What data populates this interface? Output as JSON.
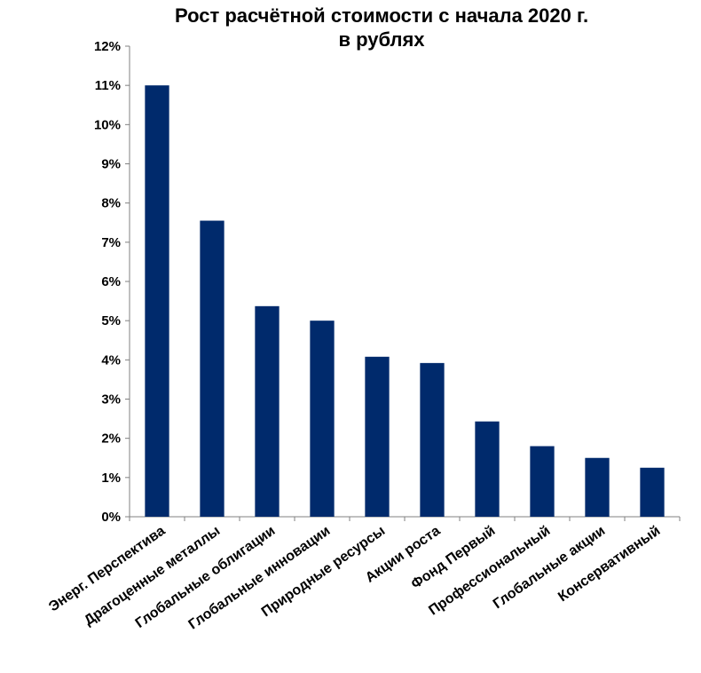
{
  "chart_data": {
    "type": "bar",
    "title": "Рост расчётной  стоимости с начала 2020 г.",
    "subtitle": "в рублях",
    "categories": [
      "Энерг. Перспектива",
      "Драгоценные металлы",
      "Глобальные облигации",
      "Глобальные инновации",
      "Природные ресурсы",
      "Акции роста",
      "Фонд Первый",
      "Профессиональный",
      "Глобальные акции",
      "Консервативный"
    ],
    "values": [
      11.0,
      7.55,
      5.37,
      5.0,
      4.08,
      3.92,
      2.43,
      1.8,
      1.5,
      1.25
    ],
    "ylim": [
      0,
      12
    ],
    "yticks": [
      "0%",
      "1%",
      "2%",
      "3%",
      "4%",
      "5%",
      "6%",
      "7%",
      "8%",
      "9%",
      "10%",
      "11%",
      "12%"
    ],
    "bar_color": "#002a6c",
    "grid": false
  }
}
